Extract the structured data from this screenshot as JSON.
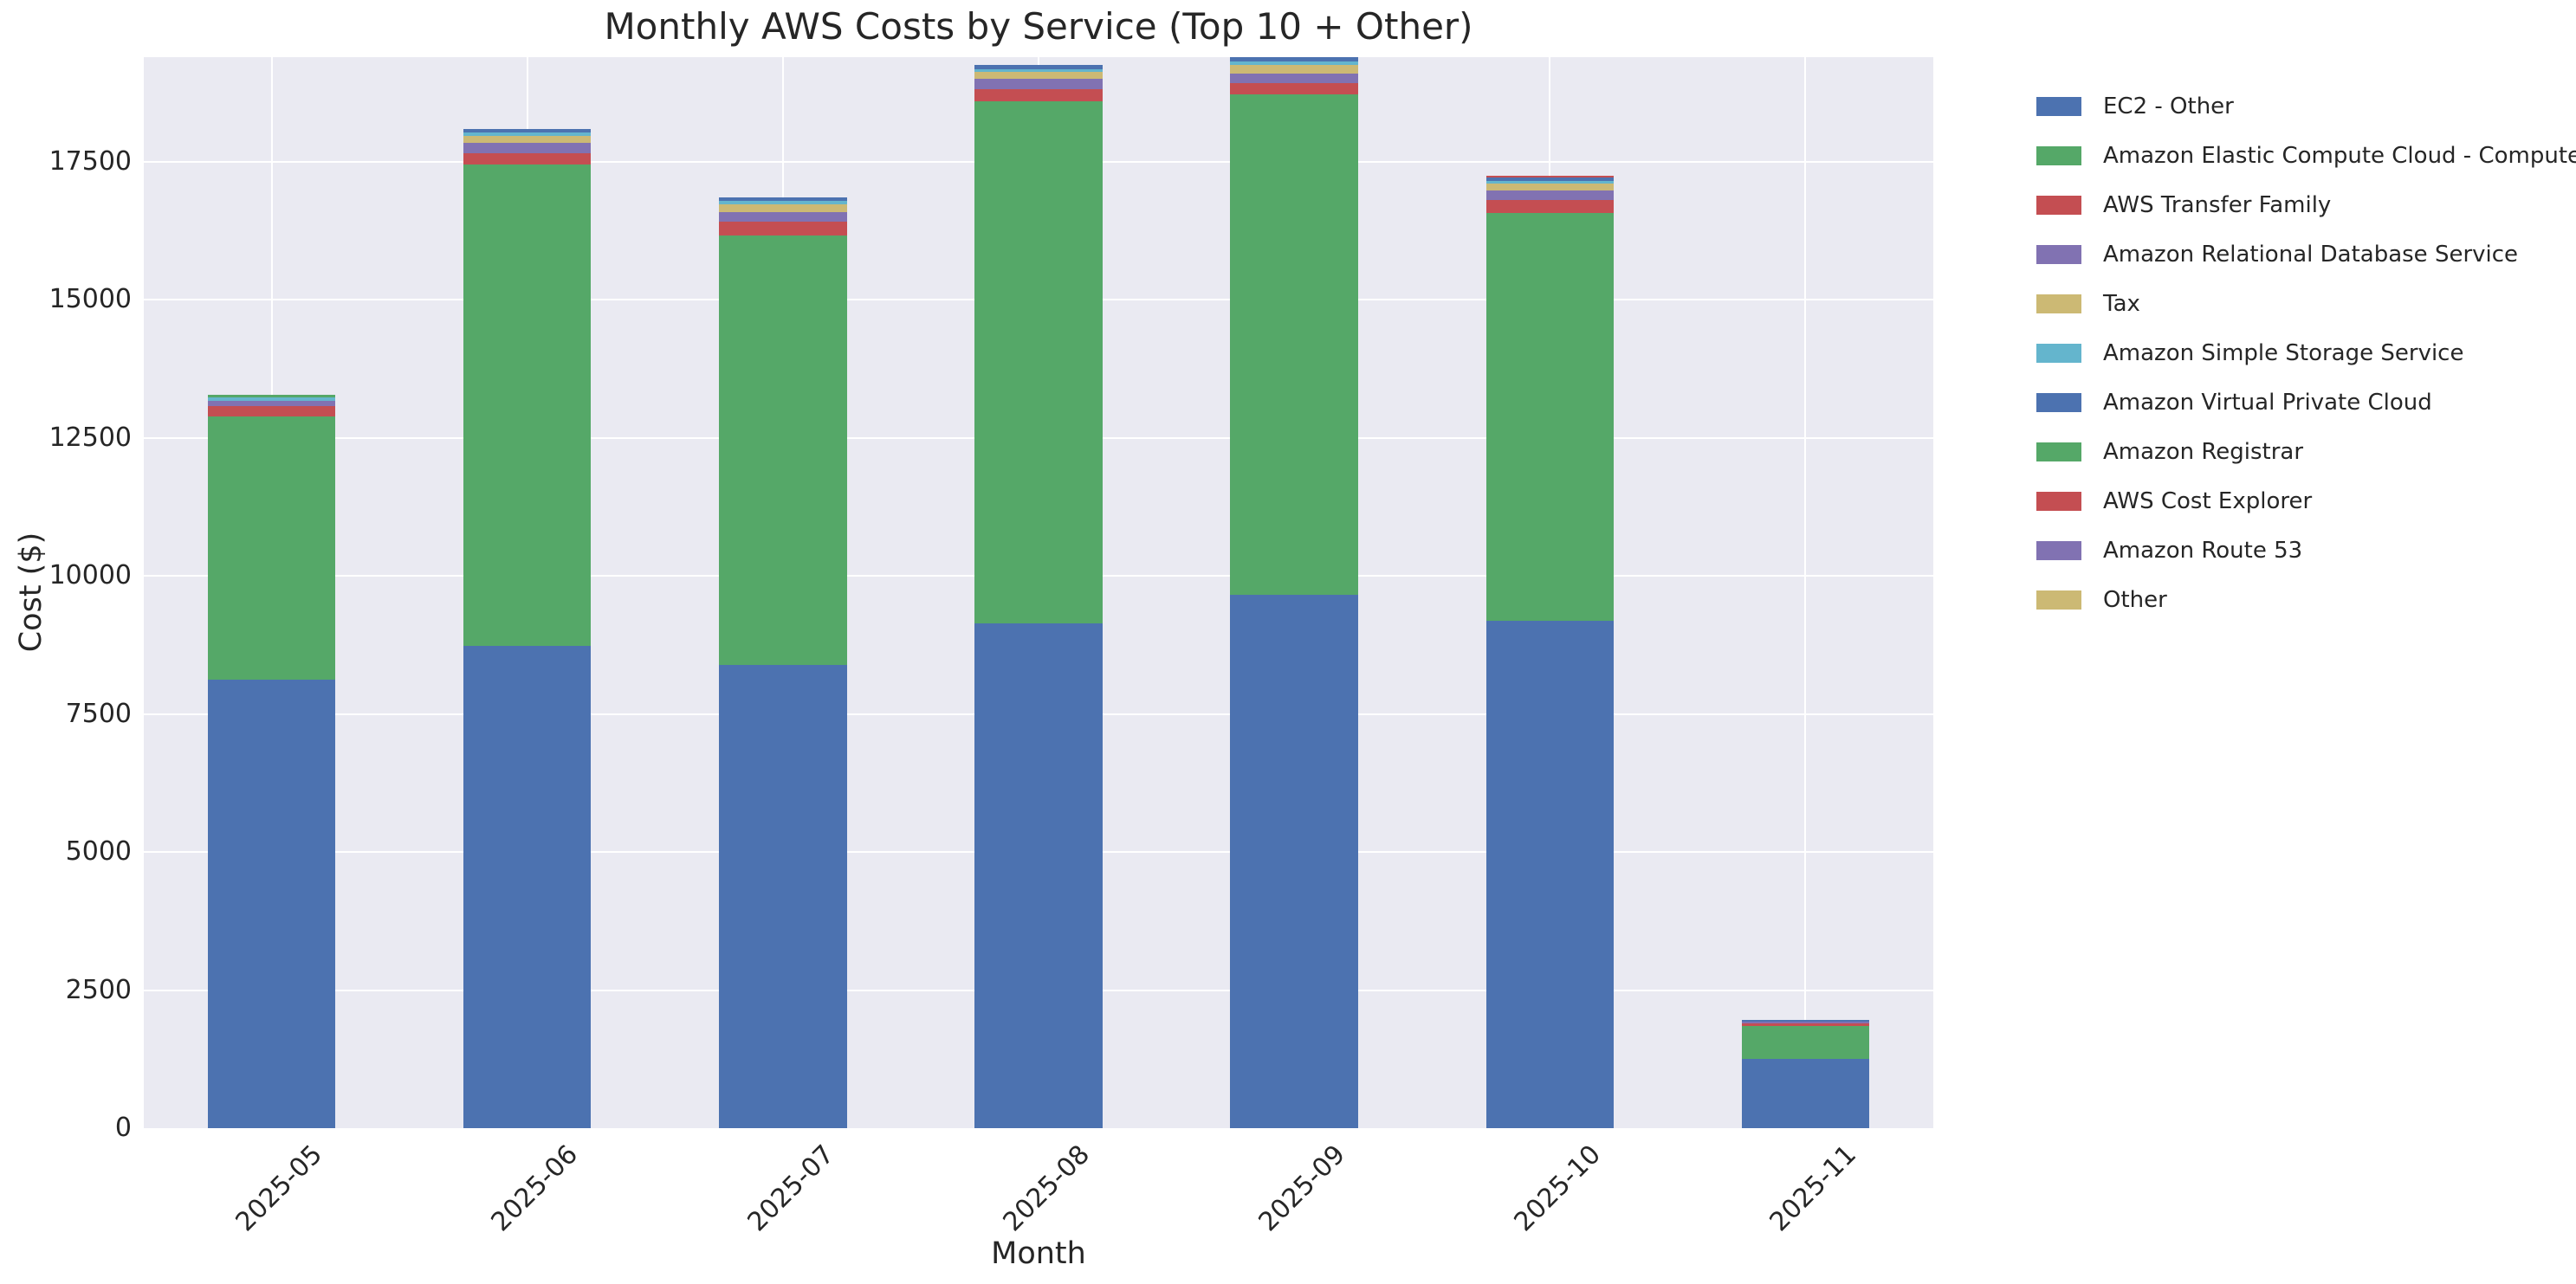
{
  "figure": {
    "title": "Monthly AWS Costs by Service (Top 10 + Other)",
    "xlabel": "Month",
    "ylabel": "Cost ($)"
  },
  "chart_data": {
    "type": "bar",
    "stacked": true,
    "title": "Monthly AWS Costs by Service (Top 10 + Other)",
    "xlabel": "Month",
    "ylabel": "Cost ($)",
    "categories": [
      "2025-05",
      "2025-06",
      "2025-07",
      "2025-08",
      "2025-09",
      "2025-10",
      "2025-11"
    ],
    "series": [
      {
        "name": "EC2 - Other",
        "color": "#4c72b0",
        "values": [
          8120,
          8730,
          8390,
          9140,
          9660,
          9190,
          1250
        ]
      },
      {
        "name": "Amazon Elastic Compute Cloud - Compute",
        "color": "#55a868",
        "values": [
          4760,
          8715,
          7775,
          9445,
          9055,
          7380,
          595
        ]
      },
      {
        "name": "AWS Transfer Family",
        "color": "#c44e52",
        "values": [
          185,
          210,
          240,
          220,
          205,
          230,
          50
        ]
      },
      {
        "name": "Amazon Relational Database Service",
        "color": "#8172b2",
        "values": [
          100,
          185,
          180,
          185,
          175,
          175,
          35
        ]
      },
      {
        "name": "Tax",
        "color": "#ccb974",
        "values": [
          0,
          125,
          140,
          125,
          160,
          125,
          0
        ]
      },
      {
        "name": "Amazon Simple Storage Service",
        "color": "#64b5cd",
        "values": [
          58,
          57,
          57,
          62,
          57,
          52,
          0
        ]
      },
      {
        "name": "Amazon Virtual Private Cloud",
        "color": "#4c72b0",
        "values": [
          0,
          68,
          67,
          73,
          73,
          52,
          30
        ]
      },
      {
        "name": "Amazon Registrar",
        "color": "#55a868",
        "values": [
          47,
          0,
          0,
          0,
          0,
          0,
          0
        ]
      },
      {
        "name": "AWS Cost Explorer",
        "color": "#c44e52",
        "values": [
          0,
          0,
          0,
          0,
          0,
          41,
          0
        ]
      },
      {
        "name": "Amazon Route 53",
        "color": "#8172b2",
        "values": [
          0,
          0,
          0,
          0,
          0,
          0,
          0
        ]
      },
      {
        "name": "Other",
        "color": "#ccb974",
        "values": [
          0,
          0,
          0,
          0,
          0,
          0,
          0
        ]
      }
    ],
    "totals": [
      13270,
      18090,
      16849,
      19250,
      19385,
      17245,
      1960
    ],
    "y_ticks": [
      0,
      2500,
      5000,
      7500,
      10000,
      12500,
      15000,
      17500
    ],
    "ylim": [
      0,
      19389
    ],
    "grid": true,
    "legend_position": "upper-right-outside",
    "plot_background": "#eaeaf2",
    "grid_color": "#ffffff",
    "text_color": "#262626"
  }
}
